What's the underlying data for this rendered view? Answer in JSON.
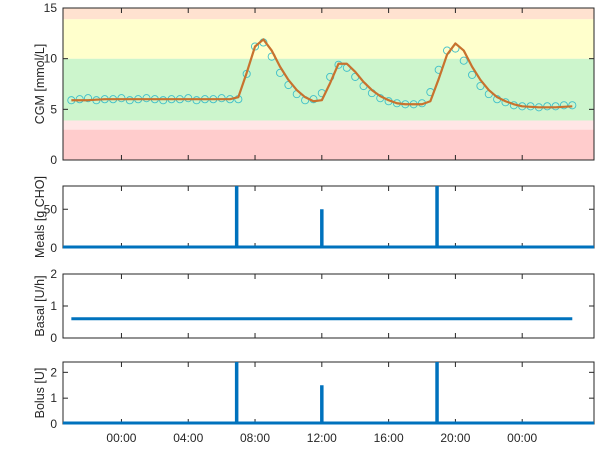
{
  "chart_data": [
    {
      "type": "scatter",
      "ylabel": "CGM [mmol/L]",
      "ylim": [
        0,
        15
      ],
      "yticks": [
        0,
        5,
        10,
        15
      ],
      "glucose_bands": [
        {
          "from": 0,
          "to": 3.0,
          "color": "#ffcccc"
        },
        {
          "from": 3.0,
          "to": 3.9,
          "color": "#ffe6e6"
        },
        {
          "from": 3.9,
          "to": 10.0,
          "color": "#ccf5cc"
        },
        {
          "from": 10.0,
          "to": 13.9,
          "color": "#ffffcc"
        },
        {
          "from": 13.9,
          "to": 15,
          "color": "#ffe2d0"
        }
      ],
      "series": [
        {
          "style": "markers",
          "color": "#3fbfc9",
          "x_hours": [
            -3,
            -2.5,
            -2,
            -1.5,
            -1,
            -0.5,
            0,
            0.5,
            1,
            1.5,
            2,
            2.5,
            3,
            3.5,
            4,
            4.5,
            5,
            5.5,
            6,
            6.5,
            7,
            7.5,
            8,
            8.5,
            9,
            9.5,
            10,
            10.5,
            11,
            11.5,
            12,
            12.5,
            13,
            13.5,
            14,
            14.5,
            15,
            15.5,
            16,
            16.5,
            17,
            17.5,
            18,
            18.5,
            19,
            19.5,
            20,
            20.5,
            21,
            21.5,
            22,
            22.5,
            23,
            23.5,
            24,
            24.5,
            25,
            25.5,
            26,
            26.5,
            27
          ],
          "values": [
            5.9,
            6.0,
            6.1,
            5.9,
            6.0,
            6.0,
            6.1,
            5.9,
            6.0,
            6.1,
            6.0,
            5.9,
            6.0,
            6.0,
            6.1,
            5.9,
            6.0,
            6.0,
            6.1,
            6.0,
            6.0,
            8.5,
            11.2,
            11.6,
            10.2,
            8.6,
            7.4,
            6.5,
            5.9,
            6.0,
            6.6,
            8.2,
            9.4,
            9.1,
            8.2,
            7.3,
            6.6,
            6.1,
            5.8,
            5.6,
            5.5,
            5.5,
            5.6,
            6.7,
            8.9,
            10.8,
            11.0,
            9.8,
            8.4,
            7.3,
            6.5,
            6.0,
            5.7,
            5.4,
            5.3,
            5.3,
            5.2,
            5.3,
            5.3,
            5.4,
            5.4
          ]
        },
        {
          "style": "line",
          "color": "#c8722e",
          "x_hours": [
            -3,
            -2,
            -1,
            0,
            1,
            2,
            3,
            4,
            5,
            6,
            6.5,
            7,
            7.5,
            8,
            8.5,
            9,
            9.5,
            10,
            10.5,
            11,
            11.5,
            12,
            12.5,
            13,
            13.5,
            14,
            14.5,
            15,
            15.5,
            16,
            16.5,
            17,
            17.5,
            18,
            18.5,
            19,
            19.5,
            20,
            20.5,
            21,
            21.5,
            22,
            22.5,
            23,
            23.5,
            24,
            25,
            26,
            27
          ],
          "values": [
            5.9,
            5.9,
            6.0,
            6.0,
            6.0,
            6.0,
            6.0,
            6.0,
            6.0,
            6.0,
            6.0,
            6.2,
            8.6,
            11.2,
            11.9,
            10.8,
            9.2,
            7.9,
            6.9,
            6.2,
            5.8,
            5.9,
            7.6,
            9.5,
            9.5,
            8.7,
            7.7,
            6.9,
            6.3,
            5.9,
            5.6,
            5.5,
            5.5,
            5.5,
            5.8,
            8.0,
            10.4,
            11.5,
            10.8,
            9.2,
            7.9,
            6.9,
            6.2,
            5.8,
            5.5,
            5.3,
            5.2,
            5.2,
            5.3
          ]
        }
      ]
    },
    {
      "type": "bar",
      "ylabel": "Meals [g CHO]",
      "ylim": [
        0,
        80
      ],
      "yticks": [
        0,
        50
      ],
      "color": "#0072bd",
      "events": [
        {
          "x_hours": 6.9,
          "value": 80
        },
        {
          "x_hours": 12.0,
          "value": 50
        },
        {
          "x_hours": 18.9,
          "value": 80
        }
      ]
    },
    {
      "type": "line",
      "ylabel": "Basal [U/h]",
      "ylim": [
        0,
        2
      ],
      "yticks": [
        0,
        1,
        2
      ],
      "color": "#0072bd",
      "x_hours": [
        -3,
        27
      ],
      "values": [
        0.6,
        0.6
      ]
    },
    {
      "type": "bar",
      "ylabel": "Bolus [U]",
      "ylim": [
        0,
        2.4
      ],
      "yticks": [
        0,
        1,
        2
      ],
      "color": "#0072bd",
      "events": [
        {
          "x_hours": 6.9,
          "value": 2.4
        },
        {
          "x_hours": 12.0,
          "value": 1.5
        },
        {
          "x_hours": 18.9,
          "value": 2.4
        }
      ]
    }
  ],
  "x_axis": {
    "xlim_hours": [
      -3.5,
      28.3
    ],
    "ticks": [
      {
        "x_hours": 0,
        "label": "00:00"
      },
      {
        "x_hours": 4,
        "label": "04:00"
      },
      {
        "x_hours": 8,
        "label": "08:00"
      },
      {
        "x_hours": 12,
        "label": "12:00"
      },
      {
        "x_hours": 16,
        "label": "16:00"
      },
      {
        "x_hours": 20,
        "label": "20:00"
      },
      {
        "x_hours": 24,
        "label": "00:00"
      }
    ]
  }
}
